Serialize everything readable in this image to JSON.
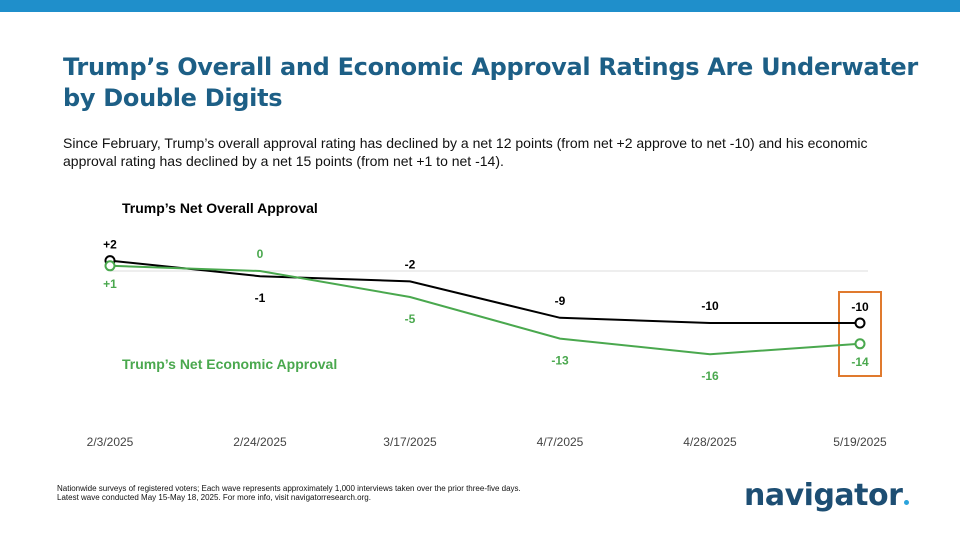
{
  "header": {
    "title": "Trump’s Overall and Economic Approval Ratings Are Underwater by Double Digits",
    "subtitle": "Since February, Trump’s overall approval rating has declined by a net 12 points (from net +2 approve to net -10) and his economic approval rating has declined by a net 15 points (from net +1 to net -14)."
  },
  "chart_data": {
    "type": "line",
    "x": [
      "2/3/2025",
      "2/24/2025",
      "3/17/2025",
      "4/7/2025",
      "4/28/2025",
      "5/19/2025"
    ],
    "series": [
      {
        "name": "Trump’s Net Overall Approval",
        "values": [
          2,
          -1,
          -2,
          -9,
          -10,
          -10
        ],
        "labels": [
          "+2",
          "-1",
          "-2",
          "-9",
          "-10",
          "-10"
        ],
        "color": "#000000"
      },
      {
        "name": "Trump’s Net Economic Approval",
        "values": [
          1,
          0,
          -5,
          -13,
          -16,
          -14
        ],
        "labels": [
          "+1",
          "0",
          "-5",
          "-13",
          "-16",
          "-14"
        ],
        "color": "#4aa84e"
      }
    ],
    "highlight_index": 5,
    "highlight_color": "#e07a2e",
    "grid": false,
    "axis_line_color": "#dddddd"
  },
  "footer": {
    "note_line1": "Nationwide surveys of registered voters; Each wave represents approximately 1,000 interviews taken over the prior three-five days.",
    "note_line2": "Latest wave conducted May 15-May 18, 2025. For more info, visit navigatorresearch.org.",
    "logo": "navigator"
  }
}
